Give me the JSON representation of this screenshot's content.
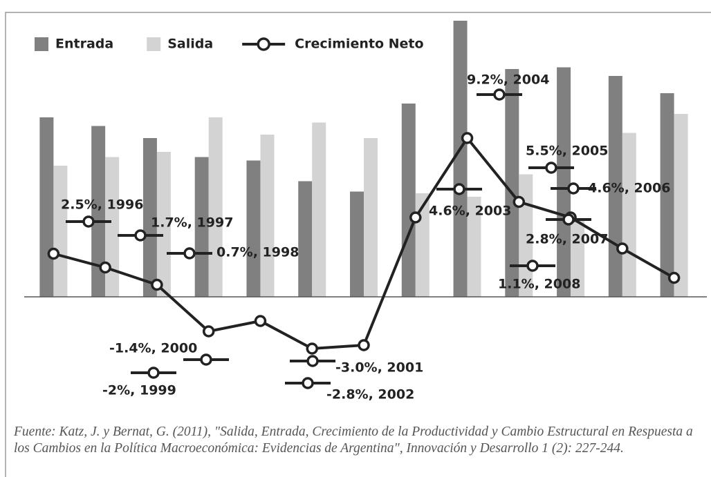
{
  "chart_data": {
    "type": "bar_line",
    "ylim": [
      -6.4,
      16.4
    ],
    "legend": "top-left",
    "series": [
      {
        "name": "Entrada",
        "type": "bar",
        "color": "#808080",
        "values": [
          10.4,
          9.9,
          9.2,
          8.1,
          7.9,
          6.7,
          6.1,
          11.2,
          16.0,
          13.2,
          13.3,
          12.8,
          11.8
        ]
      },
      {
        "name": "Salida",
        "type": "bar",
        "color": "#d3d3d3",
        "values": [
          7.6,
          8.1,
          8.4,
          10.4,
          9.4,
          10.1,
          9.2,
          6.0,
          5.8,
          7.1,
          4.5,
          9.5,
          10.6
        ]
      },
      {
        "name": "Crecimiento Neto",
        "type": "line",
        "color": "#222222",
        "values": [
          2.5,
          1.7,
          0.7,
          -2,
          -1.4,
          -3.0,
          -2.8,
          4.6,
          9.2,
          5.5,
          4.6,
          2.8,
          1.1
        ],
        "value_labels": [
          "2.5%, 1996",
          "1.7%, 1997",
          "0.7%, 1998",
          "-2%, 1999",
          "-1.4%, 2000",
          "-3.0%, 2001",
          "-2.8%, 2002",
          "4.6%, 2003",
          "9.2%, 2004",
          "5.5%, 2005",
          "4.6%, 2006",
          "2.8%, 2007",
          "1.1%, 2008"
        ]
      }
    ],
    "note": "Fuente: Katz, J. y Bernat, G. (2011), \"Salida, Entrada, Crecimiento de la Productividad y Cambio Estructural en Respuesta a los Cambios en la Política Macroeconómica: Evidencias de Argentina\", Innovación y Desarrollo 1 (2): 227-244."
  }
}
